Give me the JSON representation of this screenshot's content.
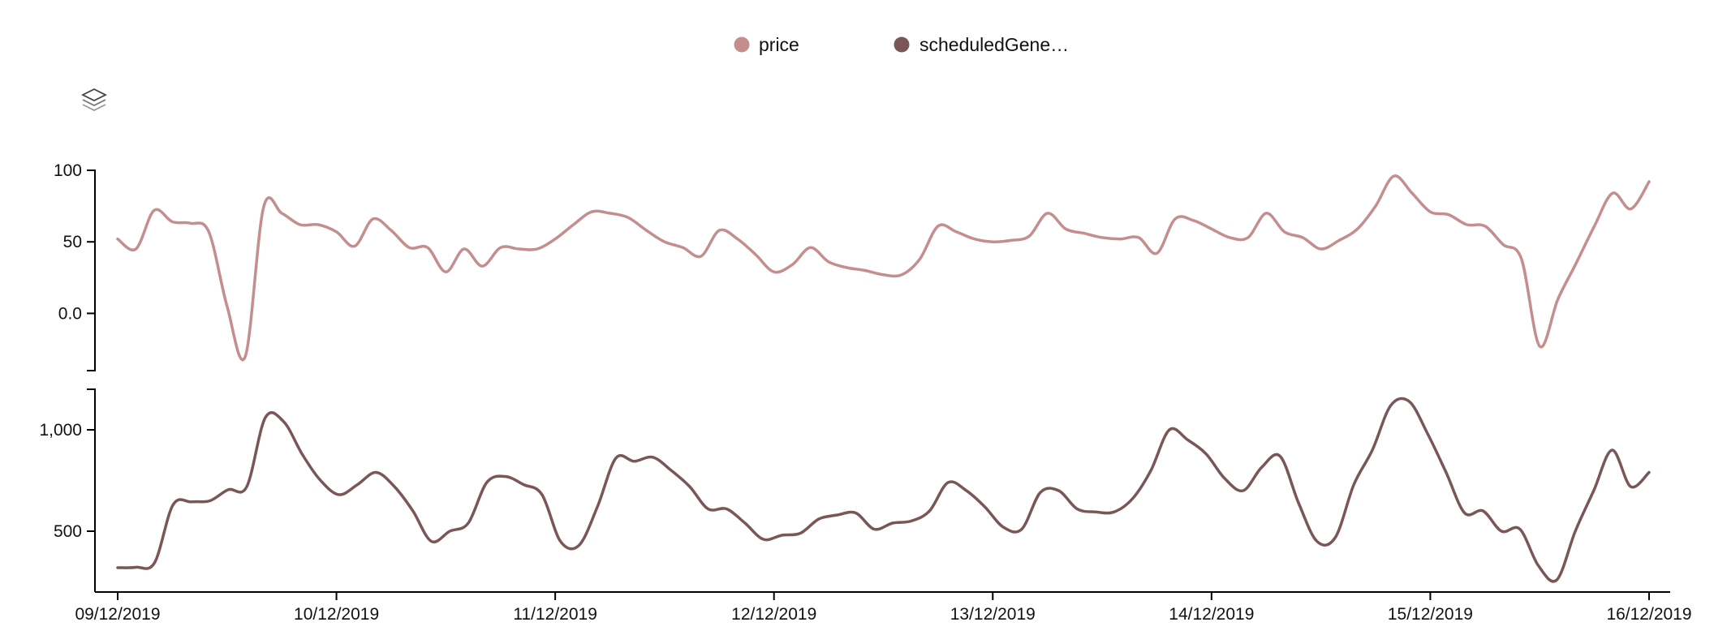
{
  "legend": {
    "items": [
      {
        "label": "price",
        "color": "#c48e8e"
      },
      {
        "label": "scheduledGene…",
        "color": "#7a5656"
      }
    ]
  },
  "toolbar": {
    "icon": "layers-icon"
  },
  "chart_data": {
    "type": "line",
    "title": "",
    "legend_placement": "top-center",
    "grid": false,
    "x": {
      "start": "2019-12-09",
      "end": "2019-12-16",
      "ticks": [
        "09/12/2019",
        "10/12/2019",
        "11/12/2019",
        "12/12/2019",
        "13/12/2019",
        "14/12/2019",
        "15/12/2019",
        "16/12/2019"
      ]
    },
    "panels": [
      {
        "series_name": "price",
        "color": "#c48e8e",
        "ylim": [
          -40,
          100
        ],
        "y_ticks": [
          100,
          50,
          0
        ],
        "y_tick_labels": [
          "100",
          "50",
          "0.0"
        ],
        "values": [
          52,
          45,
          72,
          64,
          63,
          57,
          5,
          -30,
          74,
          70,
          62,
          62,
          57,
          47,
          66,
          58,
          46,
          46,
          29,
          45,
          33,
          46,
          45,
          45,
          52,
          62,
          71,
          70,
          67,
          58,
          50,
          46,
          40,
          58,
          52,
          41,
          29,
          34,
          46,
          36,
          32,
          30,
          27,
          27,
          38,
          61,
          57,
          52,
          50,
          51,
          54,
          70,
          59,
          56,
          53,
          52,
          53,
          42,
          66,
          65,
          59,
          53,
          53,
          70,
          57,
          53,
          45,
          51,
          59,
          75,
          96,
          84,
          71,
          69,
          62,
          61,
          48,
          38,
          -23,
          10,
          35,
          61,
          84,
          73,
          92
        ]
      },
      {
        "series_name": "scheduledGene…",
        "color": "#7a5656",
        "ylim": [
          200,
          1200
        ],
        "y_ticks": [
          1000,
          500
        ],
        "y_tick_labels": [
          "1,000",
          "500"
        ],
        "values": [
          320,
          322,
          345,
          630,
          645,
          650,
          705,
          720,
          1060,
          1040,
          880,
          750,
          680,
          730,
          790,
          720,
          600,
          450,
          500,
          540,
          740,
          770,
          730,
          680,
          450,
          430,
          620,
          860,
          845,
          865,
          800,
          720,
          610,
          610,
          540,
          460,
          480,
          490,
          560,
          580,
          590,
          510,
          540,
          550,
          600,
          740,
          700,
          620,
          520,
          510,
          690,
          700,
          610,
          595,
          595,
          660,
          800,
          1000,
          950,
          880,
          760,
          700,
          815,
          870,
          640,
          450,
          470,
          730,
          900,
          1120,
          1140,
          980,
          790,
          590,
          600,
          500,
          510,
          330,
          260,
          500,
          700,
          900,
          720,
          790
        ]
      }
    ]
  }
}
